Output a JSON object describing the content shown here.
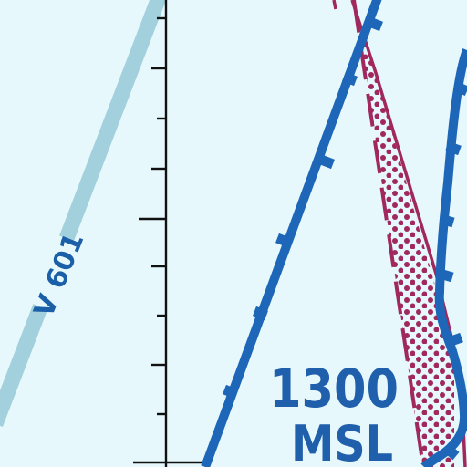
{
  "colors": {
    "background": "#e6f8fb",
    "victor_airway": "#a3d0dd",
    "class_b_boundary": "#1d66b8",
    "restricted_area": "#a0285c",
    "airway_label": "#1a5fa8",
    "altitude_label": "#1f5fab",
    "tick_scale": "#111111"
  },
  "labels": {
    "airway": "V 601",
    "altitude_value": "1300",
    "altitude_unit": "MSL"
  },
  "legend_icons": {
    "tick_scale": "scale-tick-icon",
    "restricted": "dotted-pattern-icon"
  }
}
